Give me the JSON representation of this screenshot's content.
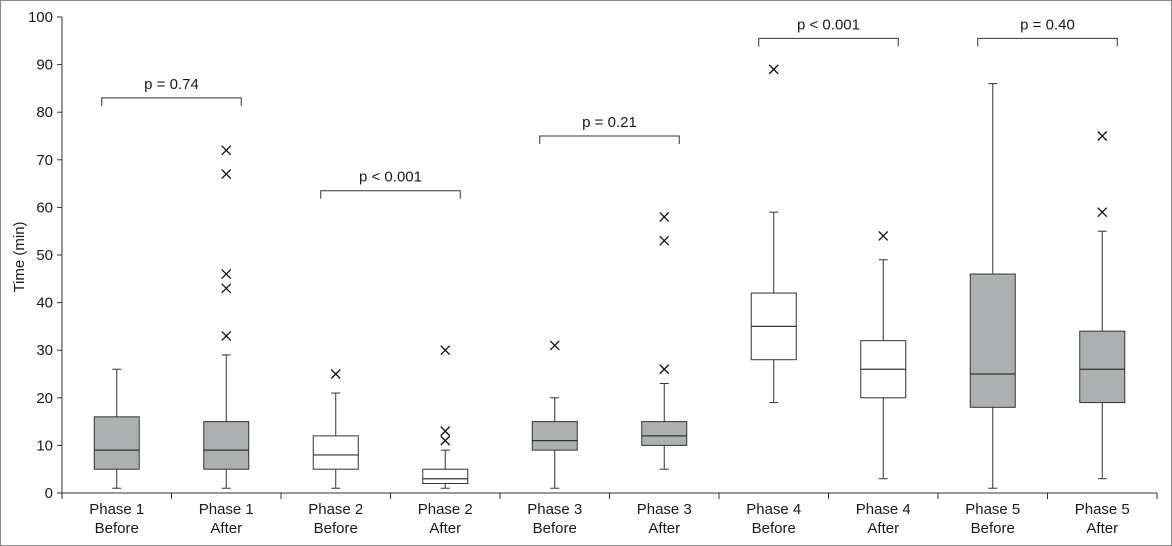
{
  "chart_data": {
    "type": "box",
    "ylabel": "Time (min)",
    "ylim": [
      0,
      100
    ],
    "yticks": [
      0,
      10,
      20,
      30,
      40,
      50,
      60,
      70,
      80,
      90,
      100
    ],
    "grid": false,
    "colors": {
      "filled": "#acb0b1",
      "open": "#ffffff",
      "stroke": "#333333"
    },
    "boxes": [
      {
        "line1": "Phase 1",
        "line2": "Before",
        "fill": "filled",
        "whisker_low": 1,
        "q1": 5,
        "median": 9,
        "q3": 16,
        "whisker_high": 26,
        "outliers": []
      },
      {
        "line1": "Phase 1",
        "line2": "After",
        "fill": "filled",
        "whisker_low": 1,
        "q1": 5,
        "median": 9,
        "q3": 15,
        "whisker_high": 29,
        "outliers": [
          33,
          43,
          46,
          67,
          72
        ]
      },
      {
        "line1": "Phase 2",
        "line2": "Before",
        "fill": "open",
        "whisker_low": 1,
        "q1": 5,
        "median": 8,
        "q3": 12,
        "whisker_high": 21,
        "outliers": [
          25
        ]
      },
      {
        "line1": "Phase 2",
        "line2": "After",
        "fill": "open",
        "whisker_low": 1,
        "q1": 2,
        "median": 3,
        "q3": 5,
        "whisker_high": 9,
        "outliers": [
          11,
          13,
          30
        ]
      },
      {
        "line1": "Phase 3",
        "line2": "Before",
        "fill": "filled",
        "whisker_low": 1,
        "q1": 9,
        "median": 11,
        "q3": 15,
        "whisker_high": 20,
        "outliers": [
          31
        ]
      },
      {
        "line1": "Phase 3",
        "line2": "After",
        "fill": "filled",
        "whisker_low": 5,
        "q1": 10,
        "median": 12,
        "q3": 15,
        "whisker_high": 23,
        "outliers": [
          26,
          53,
          58
        ]
      },
      {
        "line1": "Phase 4",
        "line2": "Before",
        "fill": "open",
        "whisker_low": 19,
        "q1": 28,
        "median": 35,
        "q3": 42,
        "whisker_high": 59,
        "outliers": [
          89
        ]
      },
      {
        "line1": "Phase 4",
        "line2": "After",
        "fill": "open",
        "whisker_low": 3,
        "q1": 20,
        "median": 26,
        "q3": 32,
        "whisker_high": 49,
        "outliers": [
          54
        ]
      },
      {
        "line1": "Phase 5",
        "line2": "Before",
        "fill": "filled",
        "whisker_low": 1,
        "q1": 18,
        "median": 25,
        "q3": 46,
        "whisker_high": 86,
        "outliers": []
      },
      {
        "line1": "Phase 5",
        "line2": "After",
        "fill": "filled",
        "whisker_low": 3,
        "q1": 19,
        "median": 26,
        "q3": 34,
        "whisker_high": 55,
        "outliers": [
          59,
          75
        ]
      }
    ],
    "comparisons": [
      {
        "label": "p = 0.74",
        "from": 0,
        "to": 1,
        "level": 83
      },
      {
        "label": "p < 0.001",
        "from": 2,
        "to": 3,
        "level": 63.5
      },
      {
        "label": "p = 0.21",
        "from": 4,
        "to": 5,
        "level": 75
      },
      {
        "label": "p < 0.001",
        "from": 6,
        "to": 7,
        "level": 95.5
      },
      {
        "label": "p = 0.40",
        "from": 8,
        "to": 9,
        "level": 95.5
      }
    ]
  }
}
